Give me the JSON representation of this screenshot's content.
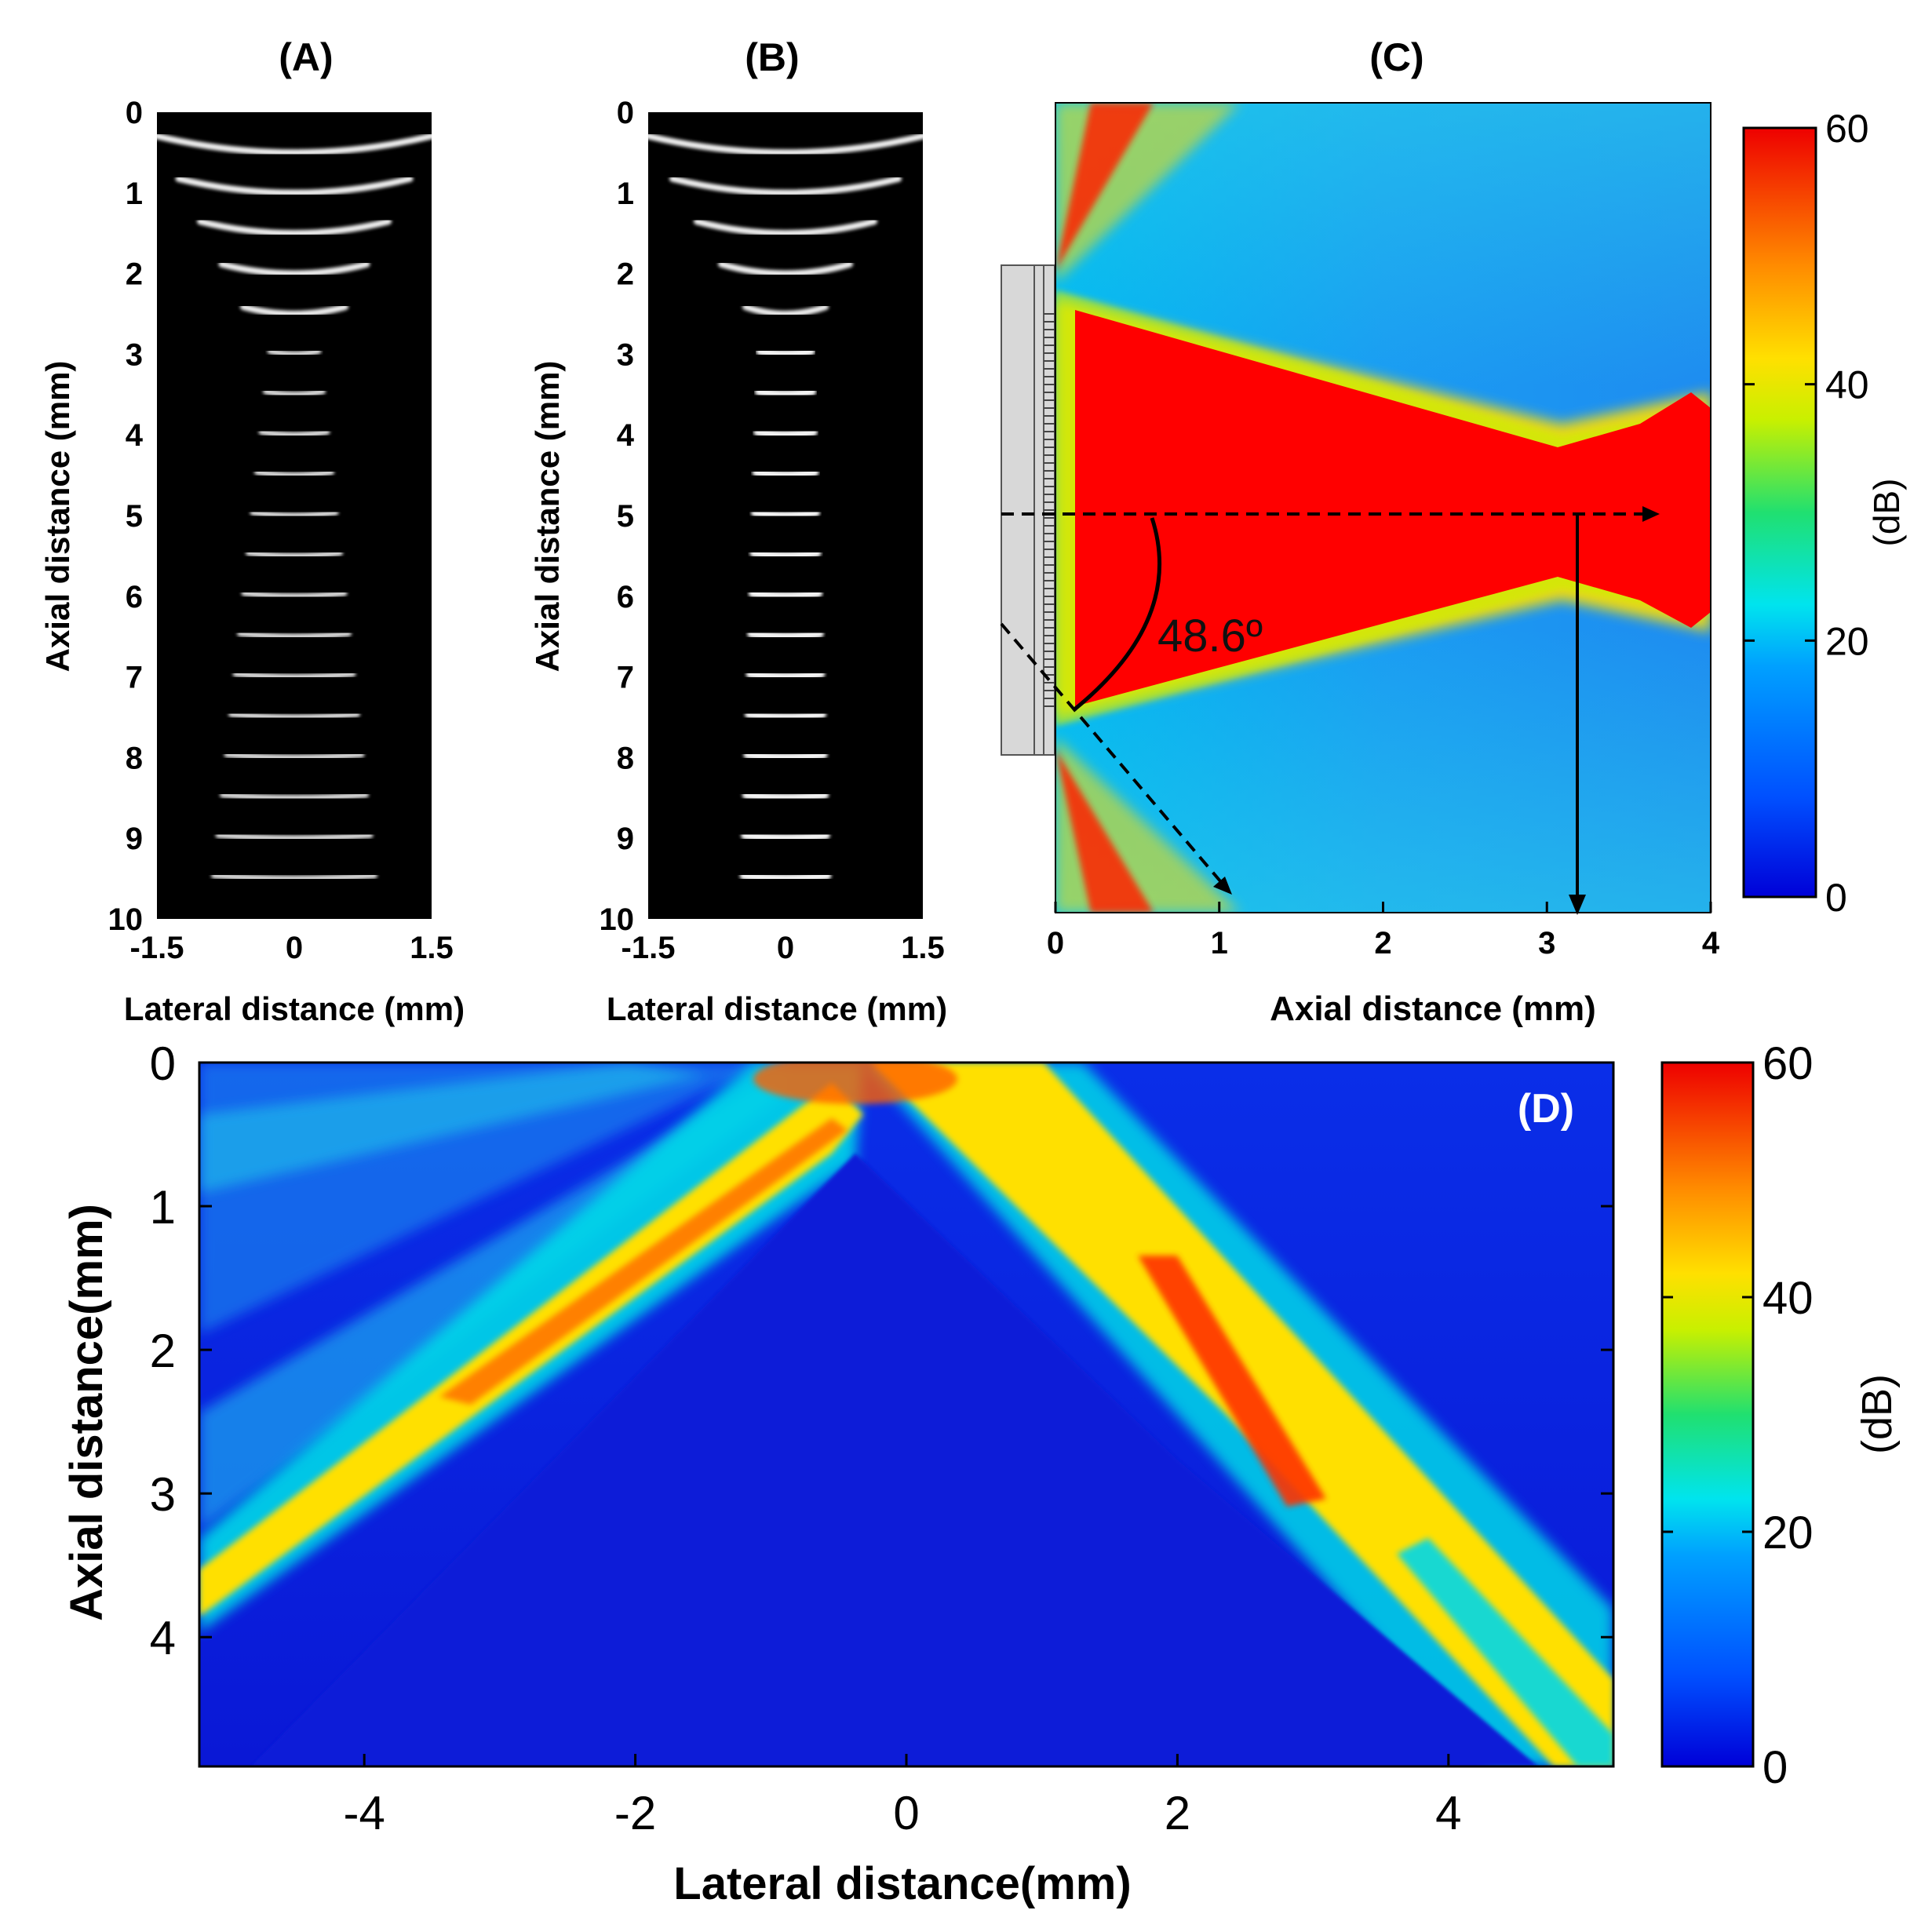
{
  "chart_data": [
    {
      "panel": "(A)",
      "type": "heatmap",
      "colormap": "gray",
      "xlabel": "Lateral distance (mm)",
      "ylabel": "Axial distance (mm)",
      "xlim": [
        -1.5,
        1.5
      ],
      "ylim": [
        0,
        10
      ],
      "xticks": [
        "-1.5",
        "0",
        "1.5"
      ],
      "yticks": [
        "0",
        "1",
        "2",
        "3",
        "4",
        "5",
        "6",
        "7",
        "8",
        "9",
        "10"
      ],
      "point_scatterers_depth_mm": [
        0.5,
        1.0,
        1.5,
        2.0,
        2.5,
        3.0,
        3.5,
        4.0,
        4.5,
        5.0,
        5.5,
        6.0,
        6.5,
        7.0,
        7.5,
        8.0,
        8.5,
        9.0,
        9.5
      ]
    },
    {
      "panel": "(B)",
      "type": "heatmap",
      "colormap": "gray",
      "xlabel": "Lateral distance (mm)",
      "ylabel": "Axial distance (mm)",
      "xlim": [
        -1.5,
        1.5
      ],
      "ylim": [
        0,
        10
      ],
      "xticks": [
        "-1.5",
        "0",
        "1.5"
      ],
      "yticks": [
        "0",
        "1",
        "2",
        "3",
        "4",
        "5",
        "6",
        "7",
        "8",
        "9",
        "10"
      ],
      "point_scatterers_depth_mm": [
        0.5,
        1.0,
        1.5,
        2.0,
        2.5,
        3.0,
        3.5,
        4.0,
        4.5,
        5.0,
        5.5,
        6.0,
        6.5,
        7.0,
        7.5,
        8.0,
        8.5,
        9.0,
        9.5
      ]
    },
    {
      "panel": "(C)",
      "type": "heatmap",
      "colormap": "jet",
      "xlabel": "Axial distance (mm)",
      "xlim": [
        0,
        4
      ],
      "xticks": [
        "0",
        "1",
        "2",
        "3",
        "4"
      ],
      "colorbar": {
        "label": "(dB)",
        "range": [
          0,
          60
        ],
        "ticks": [
          "0",
          "20",
          "40",
          "60"
        ]
      },
      "annotations": [
        {
          "text": "48.6º",
          "kind": "beam-angle"
        },
        {
          "kind": "dashed-arrow",
          "meaning": "beam axis"
        },
        {
          "kind": "dashed-arrow",
          "meaning": "beam edge"
        },
        {
          "kind": "solid-arrow",
          "at_axial_mm": 3.2
        }
      ]
    },
    {
      "panel": "(D)",
      "type": "heatmap",
      "colormap": "jet",
      "xlabel": "Lateral distance(mm)",
      "ylabel": "Axial distance(mm)",
      "xlim": [
        -5,
        5
      ],
      "ylim": [
        0,
        5
      ],
      "xticks": [
        "-4",
        "-2",
        "0",
        "2",
        "4"
      ],
      "yticks": [
        "0",
        "1",
        "2",
        "3",
        "4"
      ],
      "colorbar": {
        "label": "(dB)",
        "range": [
          0,
          60
        ],
        "ticks": [
          "0",
          "20",
          "40",
          "60"
        ]
      }
    }
  ],
  "colors": {
    "jet_low": "#0a1fe0",
    "jet_mid": "#1ee6e6",
    "jet_high": "#ff1000"
  }
}
